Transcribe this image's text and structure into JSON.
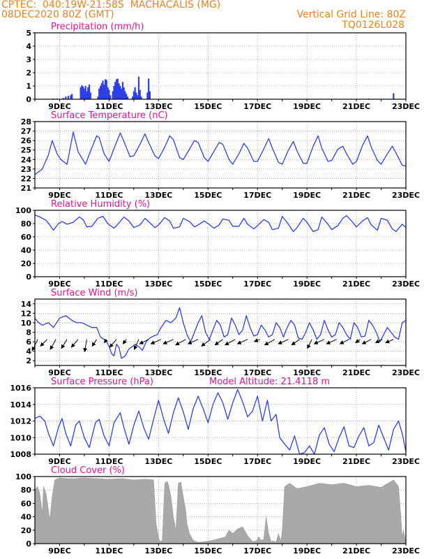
{
  "header": {
    "line1": "CPTEC:  040:19W-21:58S  MACHACALIS (MG)",
    "line2": "08DEC2020 80Z (GMT)",
    "right1": "Vertical Grid Line: 80Z",
    "right2": "TQ0126L028"
  },
  "colors": {
    "header": "#e8821e",
    "title": "#e0148c",
    "line": "#2c3fe8",
    "cloud": "#a9a9a9",
    "arrow": "#000000"
  },
  "x_ticks": [
    "9DEC",
    "11DEC",
    "13DEC",
    "15DEC",
    "17DEC",
    "19DEC",
    "21DEC",
    "23DEC"
  ],
  "chart_data": [
    {
      "type": "bar",
      "title": "Precipitation (mm/h)",
      "yticks": [
        "0",
        "1",
        "2",
        "3",
        "4",
        "5"
      ],
      "ylim": [
        0,
        5
      ],
      "x_range_days": [
        8.0,
        23.0
      ],
      "values": [
        [
          8.75,
          0.05
        ],
        [
          8.9,
          0.05
        ],
        [
          9.15,
          0.1
        ],
        [
          9.25,
          0.2
        ],
        [
          9.35,
          0.25
        ],
        [
          9.45,
          0.3
        ],
        [
          9.5,
          0.4
        ],
        [
          9.85,
          0.9
        ],
        [
          9.9,
          1.05
        ],
        [
          9.95,
          0.95
        ],
        [
          10.0,
          0.8
        ],
        [
          10.05,
          1.0
        ],
        [
          10.1,
          0.6
        ],
        [
          10.15,
          0.9
        ],
        [
          10.2,
          1.1
        ],
        [
          10.25,
          0.5
        ],
        [
          10.55,
          0.2
        ],
        [
          10.6,
          0.8
        ],
        [
          10.65,
          1.0
        ],
        [
          10.7,
          1.2
        ],
        [
          10.75,
          1.4
        ],
        [
          10.8,
          1.1
        ],
        [
          10.85,
          1.5
        ],
        [
          10.9,
          1.45
        ],
        [
          10.95,
          0.9
        ],
        [
          11.0,
          0.7
        ],
        [
          11.05,
          0.3
        ],
        [
          11.15,
          0.6
        ],
        [
          11.2,
          1.0
        ],
        [
          11.25,
          1.3
        ],
        [
          11.3,
          1.5
        ],
        [
          11.35,
          1.55
        ],
        [
          11.4,
          1.2
        ],
        [
          11.45,
          1.0
        ],
        [
          11.5,
          0.8
        ],
        [
          11.55,
          1.3
        ],
        [
          11.6,
          0.9
        ],
        [
          11.65,
          0.6
        ],
        [
          11.7,
          0.4
        ],
        [
          11.75,
          0.2
        ],
        [
          11.95,
          0.2
        ],
        [
          12.0,
          0.6
        ],
        [
          12.05,
          0.9
        ],
        [
          12.1,
          0.5
        ],
        [
          12.15,
          0.3
        ],
        [
          12.2,
          1.7
        ],
        [
          12.25,
          0.7
        ],
        [
          12.3,
          0.2
        ],
        [
          12.55,
          0.5
        ],
        [
          12.6,
          1.55
        ],
        [
          12.65,
          0.6
        ],
        [
          21.5,
          0.05
        ],
        [
          22.5,
          0.45
        ]
      ]
    },
    {
      "type": "line",
      "title": "Surface Temperature (nC)",
      "yticks": [
        "21",
        "22",
        "23",
        "24",
        "25",
        "26",
        "27",
        "28"
      ],
      "ylim": [
        21,
        28
      ],
      "x": [
        8.0,
        8.3,
        8.55,
        8.7,
        8.9,
        9.05,
        9.3,
        9.45,
        9.55,
        9.75,
        10.05,
        10.25,
        10.5,
        10.6,
        10.8,
        11.0,
        11.25,
        11.45,
        11.6,
        11.85,
        12.0,
        12.25,
        12.45,
        12.6,
        12.85,
        13.0,
        13.25,
        13.45,
        13.6,
        13.85,
        14.0,
        14.25,
        14.45,
        14.6,
        14.85,
        15.0,
        15.25,
        15.45,
        15.6,
        15.85,
        16.0,
        16.25,
        16.45,
        16.6,
        16.85,
        17.0,
        17.25,
        17.45,
        17.6,
        17.85,
        18.0,
        18.25,
        18.45,
        18.6,
        18.85,
        19.0,
        19.25,
        19.45,
        19.6,
        19.85,
        20.0,
        20.25,
        20.45,
        20.6,
        20.85,
        21.0,
        21.25,
        21.45,
        21.6,
        21.85,
        22.0,
        22.25,
        22.45,
        22.6,
        22.85,
        23.0
      ],
      "values": [
        22.4,
        23.0,
        24.5,
        26.0,
        24.6,
        24.0,
        23.5,
        25.5,
        26.9,
        24.8,
        23.5,
        24.9,
        26.5,
        26.3,
        24.6,
        23.8,
        25.5,
        26.8,
        25.9,
        24.3,
        24.4,
        25.6,
        26.7,
        25.8,
        24.4,
        24.1,
        25.3,
        26.5,
        26.1,
        24.2,
        24.0,
        25.1,
        26.0,
        25.8,
        24.2,
        23.8,
        24.9,
        25.8,
        25.6,
        24.0,
        23.5,
        24.6,
        25.7,
        25.2,
        23.8,
        23.8,
        25.1,
        26.2,
        25.2,
        23.7,
        23.5,
        25.0,
        25.9,
        24.9,
        23.6,
        23.6,
        25.4,
        26.5,
        25.2,
        23.8,
        23.9,
        25.1,
        25.4,
        24.6,
        23.5,
        23.8,
        25.5,
        26.5,
        25.3,
        23.9,
        23.5,
        24.6,
        25.4,
        24.7,
        23.4,
        23.3
      ]
    },
    {
      "type": "line",
      "title": "Relative Humidity (%)",
      "yticks": [
        "0",
        "20",
        "40",
        "60",
        "80",
        "100"
      ],
      "ylim": [
        0,
        100
      ],
      "x": [
        8.0,
        8.2,
        8.45,
        8.6,
        8.75,
        8.95,
        9.1,
        9.3,
        9.55,
        9.8,
        9.95,
        10.1,
        10.3,
        10.55,
        10.75,
        10.95,
        11.2,
        11.4,
        11.6,
        11.8,
        12.0,
        12.25,
        12.45,
        12.6,
        12.85,
        13.0,
        13.25,
        13.45,
        13.6,
        13.85,
        14.0,
        14.25,
        14.45,
        14.6,
        14.85,
        15.0,
        15.25,
        15.45,
        15.6,
        15.85,
        16.0,
        16.25,
        16.45,
        16.6,
        16.85,
        17.0,
        17.25,
        17.45,
        17.6,
        17.85,
        18.0,
        18.25,
        18.45,
        18.6,
        18.85,
        19.0,
        19.25,
        19.45,
        19.6,
        19.85,
        20.0,
        20.25,
        20.45,
        20.6,
        20.85,
        21.0,
        21.25,
        21.45,
        21.6,
        21.85,
        22.0,
        22.25,
        22.45,
        22.6,
        22.85,
        23.0
      ],
      "values": [
        93,
        90,
        85,
        78,
        70,
        80,
        83,
        79,
        82,
        90,
        86,
        75,
        76,
        88,
        91,
        80,
        73,
        81,
        90,
        84,
        74,
        78,
        88,
        83,
        74,
        78,
        89,
        84,
        73,
        75,
        88,
        83,
        75,
        78,
        84,
        80,
        73,
        78,
        87,
        85,
        76,
        76,
        88,
        79,
        72,
        77,
        86,
        82,
        71,
        73,
        91,
        79,
        68,
        74,
        88,
        82,
        68,
        71,
        90,
        79,
        71,
        77,
        88,
        92,
        82,
        75,
        84,
        89,
        78,
        70,
        88,
        85,
        72,
        68,
        79,
        74
      ]
    },
    {
      "type": "line",
      "title": "Surface Wind (m/s)",
      "yticks": [
        "2",
        "4",
        "6",
        "8",
        "10",
        "12",
        "14"
      ],
      "ylim": [
        1,
        15
      ],
      "x": [
        8.0,
        8.15,
        8.3,
        8.55,
        8.75,
        9.0,
        9.25,
        9.5,
        9.7,
        9.9,
        10.1,
        10.3,
        10.5,
        10.65,
        10.8,
        10.9,
        11.0,
        11.1,
        11.2,
        11.3,
        11.4,
        11.5,
        11.65,
        11.8,
        11.95,
        12.05,
        12.2,
        12.35,
        12.5,
        12.65,
        12.8,
        12.95,
        13.1,
        13.3,
        13.5,
        13.7,
        13.85,
        14.0,
        14.15,
        14.3,
        14.45,
        14.6,
        14.75,
        14.9,
        15.05,
        15.2,
        15.35,
        15.5,
        15.65,
        15.8,
        15.95,
        16.1,
        16.25,
        16.4,
        16.55,
        16.7,
        16.85,
        17.0,
        17.15,
        17.3,
        17.45,
        17.6,
        17.75,
        17.9,
        18.05,
        18.2,
        18.35,
        18.5,
        18.65,
        18.8,
        18.95,
        19.1,
        19.25,
        19.4,
        19.55,
        19.7,
        19.85,
        20.0,
        20.15,
        20.3,
        20.45,
        20.6,
        20.75,
        20.9,
        21.05,
        21.2,
        21.35,
        21.5,
        21.65,
        21.8,
        21.95,
        22.1,
        22.25,
        22.4,
        22.55,
        22.7,
        22.85,
        23.0
      ],
      "values": [
        11.0,
        10.0,
        9.5,
        10.0,
        9.0,
        11.0,
        11.5,
        10.5,
        10.0,
        10.0,
        9.5,
        9.0,
        9.0,
        7.0,
        6.5,
        6.0,
        5.0,
        3.5,
        3.0,
        5.5,
        4.8,
        2.5,
        3.0,
        4.5,
        5.0,
        5.5,
        5.0,
        4.2,
        6.0,
        6.8,
        7.2,
        7.5,
        9.0,
        10.5,
        10.0,
        11.0,
        13.2,
        10.0,
        7.5,
        6.0,
        8.0,
        10.0,
        11.5,
        8.0,
        6.5,
        8.5,
        10.5,
        9.5,
        7.0,
        7.5,
        11.0,
        9.5,
        7.5,
        8.5,
        11.5,
        9.0,
        7.2,
        7.5,
        9.5,
        8.5,
        7.0,
        7.5,
        10.0,
        9.0,
        7.0,
        9.0,
        10.5,
        9.5,
        6.8,
        6.5,
        8.0,
        10.0,
        8.5,
        6.5,
        7.5,
        10.5,
        8.5,
        7.0,
        7.5,
        10.0,
        9.0,
        7.5,
        6.5,
        10.0,
        9.0,
        7.0,
        7.2,
        10.5,
        9.5,
        8.0,
        6.0,
        7.5,
        9.0,
        8.0,
        7.0,
        6.5,
        10.0,
        10.5
      ],
      "arrows": [
        {
          "x": 8.12,
          "u": -5,
          "v": -10
        },
        {
          "x": 8.5,
          "u": -6,
          "v": -6
        },
        {
          "x": 8.85,
          "u": -5,
          "v": -9
        },
        {
          "x": 9.3,
          "u": -5,
          "v": -8
        },
        {
          "x": 9.75,
          "u": -6,
          "v": -7
        },
        {
          "x": 10.1,
          "u": -2,
          "v": -11
        },
        {
          "x": 10.5,
          "u": -4,
          "v": -6
        },
        {
          "x": 10.9,
          "u": -2,
          "v": -3
        },
        {
          "x": 11.3,
          "u": -6,
          "v": -7
        },
        {
          "x": 11.7,
          "u": -3,
          "v": -4
        },
        {
          "x": 12.2,
          "u": -4,
          "v": -9
        },
        {
          "x": 12.6,
          "u": -8,
          "v": -4
        },
        {
          "x": 13.1,
          "u": -9,
          "v": -4
        },
        {
          "x": 13.6,
          "u": -9,
          "v": -4
        },
        {
          "x": 14.1,
          "u": -9,
          "v": -5
        },
        {
          "x": 14.6,
          "u": -9,
          "v": -4
        },
        {
          "x": 15.1,
          "u": -8,
          "v": -6
        },
        {
          "x": 15.6,
          "u": -7,
          "v": -5
        },
        {
          "x": 16.1,
          "u": -9,
          "v": -5
        },
        {
          "x": 16.6,
          "u": -9,
          "v": -4
        },
        {
          "x": 17.1,
          "u": -5,
          "v": -2
        },
        {
          "x": 17.7,
          "u": -9,
          "v": -5
        },
        {
          "x": 18.25,
          "u": -9,
          "v": -4
        },
        {
          "x": 18.7,
          "u": -7,
          "v": -5
        },
        {
          "x": 19.2,
          "u": -4,
          "v": -8
        },
        {
          "x": 19.7,
          "u": -9,
          "v": -4
        },
        {
          "x": 20.2,
          "u": -9,
          "v": -4
        },
        {
          "x": 20.7,
          "u": -8,
          "v": -4
        },
        {
          "x": 21.15,
          "u": -4,
          "v": -3
        },
        {
          "x": 21.6,
          "u": -8,
          "v": -4
        },
        {
          "x": 22.05,
          "u": -6,
          "v": -3
        },
        {
          "x": 22.5,
          "u": -7,
          "v": -3
        }
      ]
    },
    {
      "type": "line",
      "title": "Surface Pressure (hPa)",
      "annotation": "Model Altitude: 21.4118 m",
      "yticks": [
        "1008",
        "1010",
        "1012",
        "1014",
        "1016"
      ],
      "ylim": [
        1008,
        1016
      ],
      "x": [
        8.0,
        8.2,
        8.4,
        8.55,
        8.75,
        8.95,
        9.1,
        9.25,
        9.45,
        9.65,
        9.8,
        10.0,
        10.2,
        10.45,
        10.6,
        10.8,
        11.0,
        11.2,
        11.45,
        11.6,
        11.8,
        12.0,
        12.2,
        12.4,
        12.6,
        12.8,
        13.0,
        13.2,
        13.4,
        13.6,
        13.8,
        14.0,
        14.2,
        14.4,
        14.6,
        14.8,
        15.0,
        15.2,
        15.4,
        15.6,
        15.8,
        16.0,
        16.2,
        16.4,
        16.6,
        16.8,
        17.0,
        17.2,
        17.4,
        17.55,
        17.75,
        17.9,
        18.1,
        18.3,
        18.5,
        18.7,
        18.9,
        19.1,
        19.3,
        19.5,
        19.7,
        19.9,
        20.1,
        20.3,
        20.5,
        20.7,
        20.9,
        21.1,
        21.3,
        21.5,
        21.7,
        21.9,
        22.1,
        22.3,
        22.5,
        22.7,
        22.85,
        23.0
      ],
      "values": [
        1012.3,
        1012.6,
        1012.0,
        1010.5,
        1009.0,
        1011.2,
        1012.3,
        1010.5,
        1009.0,
        1011.5,
        1012.0,
        1010.0,
        1008.8,
        1011.8,
        1012.2,
        1010.2,
        1009.0,
        1011.8,
        1013.0,
        1011.2,
        1009.2,
        1011.5,
        1013.2,
        1011.2,
        1009.8,
        1012.2,
        1014.5,
        1012.3,
        1010.5,
        1013.0,
        1014.8,
        1013.1,
        1011.0,
        1013.5,
        1015.0,
        1013.5,
        1011.8,
        1014.0,
        1015.4,
        1014.2,
        1012.2,
        1014.2,
        1015.8,
        1014.3,
        1012.5,
        1013.2,
        1015.0,
        1012.0,
        1014.5,
        1012.0,
        1012.8,
        1010.0,
        1009.2,
        1008.5,
        1010.2,
        1008.0,
        1008.2,
        1009.0,
        1008.0,
        1010.3,
        1011.2,
        1009.2,
        1008.3,
        1010.0,
        1011.3,
        1009.0,
        1008.8,
        1010.2,
        1011.2,
        1009.0,
        1009.4,
        1011.5,
        1010.0,
        1008.5,
        1011.0,
        1012.0,
        1010.5,
        1008.3
      ]
    },
    {
      "type": "area",
      "title": "Cloud Cover (%)",
      "yticks": [
        "0",
        "20",
        "40",
        "60",
        "80",
        "100"
      ],
      "ylim": [
        0,
        100
      ],
      "x": [
        8.0,
        8.1,
        8.2,
        8.3,
        8.35,
        8.45,
        8.55,
        8.6,
        8.7,
        8.8,
        9.0,
        9.3,
        9.6,
        10.0,
        10.5,
        11.0,
        11.5,
        12.0,
        12.5,
        12.8,
        12.9,
        13.0,
        13.05,
        13.15,
        13.25,
        13.35,
        13.4,
        13.5,
        13.6,
        13.7,
        13.8,
        13.9,
        14.0,
        14.1,
        14.15,
        14.25,
        14.4,
        14.6,
        14.9,
        15.2,
        15.5,
        15.7,
        15.85,
        16.0,
        16.2,
        16.4,
        16.6,
        16.8,
        16.95,
        17.05,
        17.15,
        17.25,
        17.35,
        17.45,
        17.55,
        17.65,
        17.75,
        17.85,
        17.95,
        18.0,
        18.1,
        18.3,
        18.6,
        19.0,
        19.5,
        20.0,
        20.5,
        21.0,
        21.5,
        22.0,
        22.5,
        22.7,
        22.8,
        22.85,
        22.9,
        23.0
      ],
      "values": [
        80,
        85,
        75,
        45,
        85,
        75,
        50,
        35,
        70,
        95,
        98,
        97,
        97,
        98,
        97,
        96,
        97,
        95,
        96,
        95,
        30,
        10,
        3,
        5,
        90,
        93,
        88,
        70,
        40,
        20,
        90,
        92,
        70,
        50,
        30,
        15,
        5,
        2,
        3,
        5,
        8,
        10,
        20,
        15,
        22,
        25,
        12,
        3,
        4,
        10,
        5,
        6,
        40,
        15,
        3,
        4,
        2,
        15,
        3,
        20,
        85,
        90,
        82,
        85,
        90,
        88,
        90,
        85,
        87,
        84,
        95,
        85,
        40,
        10,
        20,
        2
      ]
    }
  ]
}
